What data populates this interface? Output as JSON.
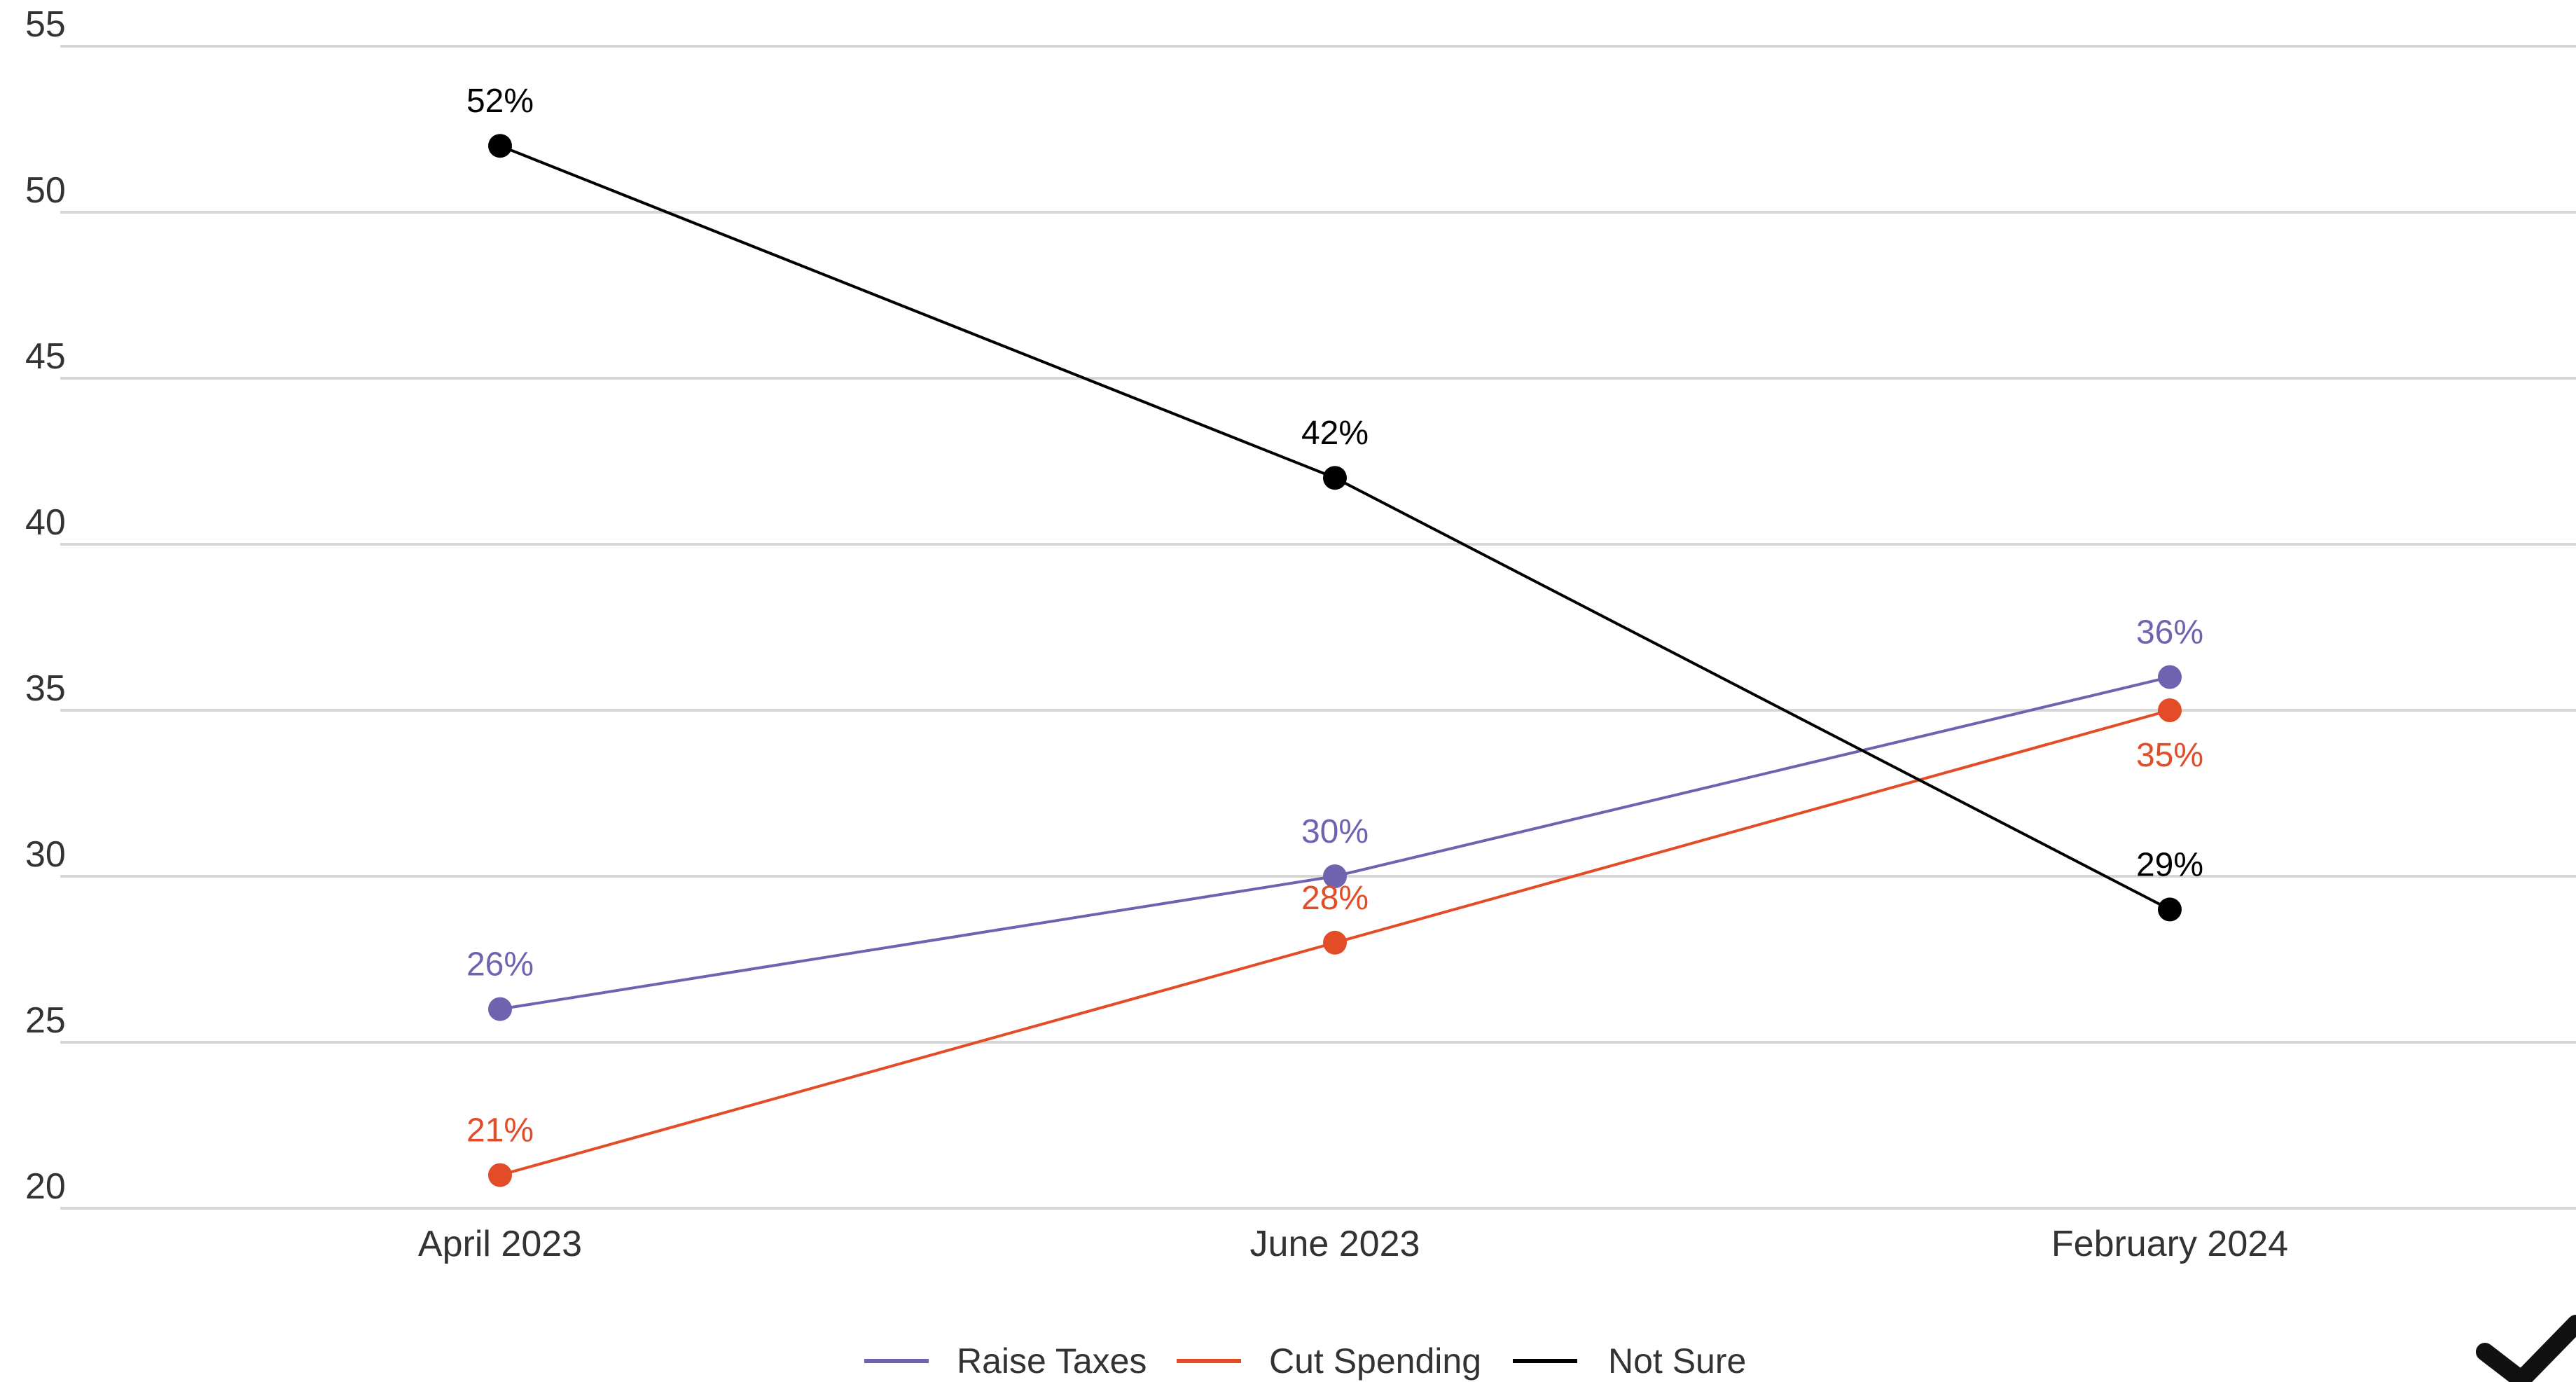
{
  "chart_data": {
    "type": "line",
    "categories": [
      "April 2023",
      "June 2023",
      "February 2024"
    ],
    "ylim": [
      20,
      55
    ],
    "yticks": [
      20,
      25,
      30,
      35,
      40,
      45,
      50,
      55
    ],
    "grid": true,
    "legend_position": "bottom-center",
    "series": [
      {
        "name": "Raise Taxes",
        "values": [
          26,
          30,
          36
        ],
        "labels": [
          "26%",
          "30%",
          "36%"
        ],
        "color": "#6f63b0"
      },
      {
        "name": "Cut Spending",
        "values": [
          21,
          28,
          35
        ],
        "labels": [
          "21%",
          "28%",
          "35%"
        ],
        "color": "#e24c27"
      },
      {
        "name": "Not Sure",
        "values": [
          52,
          42,
          29
        ],
        "labels": [
          "52%",
          "42%",
          "29%"
        ],
        "color": "#000000"
      }
    ]
  }
}
